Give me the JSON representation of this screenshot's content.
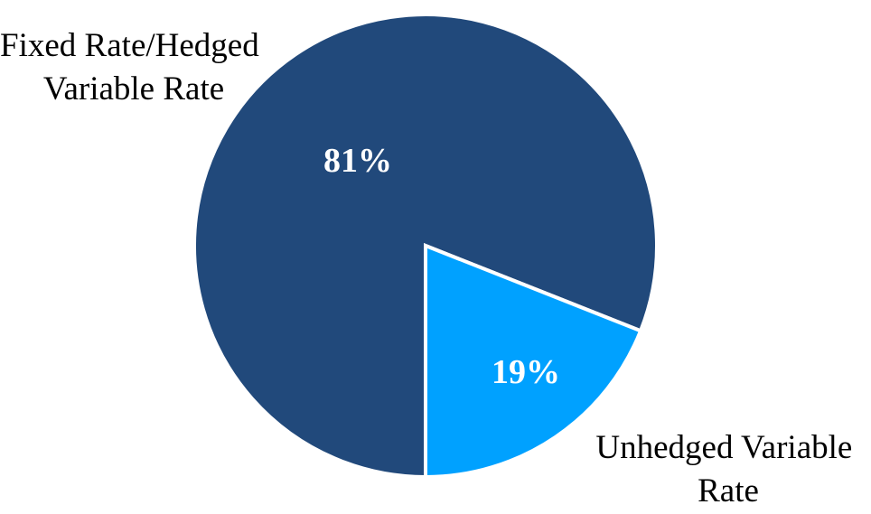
{
  "chart_data": {
    "type": "pie",
    "slices": [
      {
        "label_lines": [
          "Fixed Rate/Hedged",
          "Variable Rate"
        ],
        "value": 81,
        "value_label": "81%",
        "color": "#21497B"
      },
      {
        "label_lines": [
          "Unhedged Variable",
          "Rate"
        ],
        "value": 19,
        "value_label": "19%",
        "color": "#00A1FF"
      }
    ],
    "separator_color": "#ffffff",
    "legend": "none"
  }
}
